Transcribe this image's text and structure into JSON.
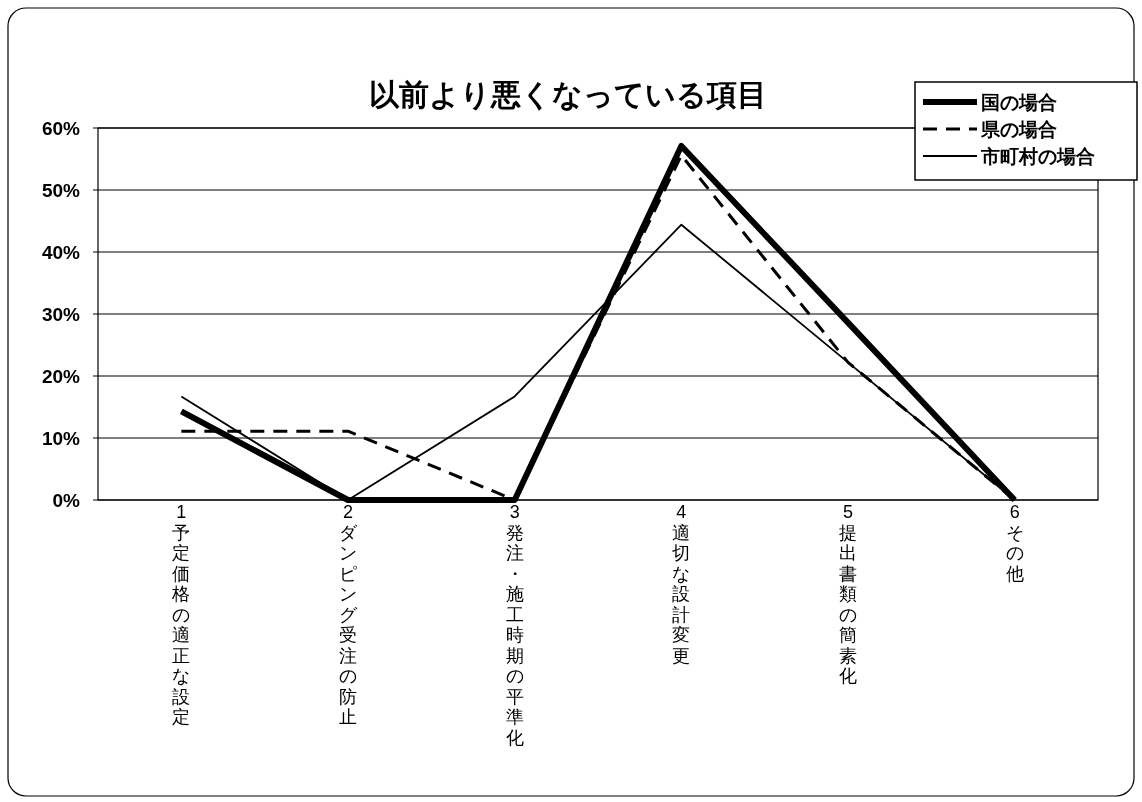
{
  "chart_data": {
    "type": "line",
    "title": "以前より悪くなっている項目",
    "categories": [
      "1予定価格の適正な設定",
      "2ダンピング受注の防止",
      "3発注・施工時期の平準化",
      "4適切な設計変更",
      "5提出書類の簡素化",
      "6その他"
    ],
    "series": [
      {
        "name": "国の場合",
        "color": "#000000",
        "line_style": "solid",
        "values": [
          14.3,
          0,
          0,
          57.1,
          28.6,
          0
        ]
      },
      {
        "name": "県の場合",
        "color": "#000000",
        "line_style": "dashed",
        "values": [
          11.1,
          11.1,
          0,
          55.6,
          22.2,
          0
        ]
      },
      {
        "name": "市町村の場合",
        "color": "#000000",
        "line_style": "solid",
        "values": [
          16.7,
          0,
          16.7,
          44.4,
          22.2,
          0
        ]
      }
    ],
    "ylim": [
      0,
      60
    ],
    "yticks": [
      {
        "value": 0,
        "label": "0%"
      },
      {
        "value": 10,
        "label": "10%"
      },
      {
        "value": 20,
        "label": "20%"
      },
      {
        "value": 30,
        "label": "30%"
      },
      {
        "value": 40,
        "label": "40%"
      },
      {
        "value": 50,
        "label": "50%"
      },
      {
        "value": 60,
        "label": "60%"
      }
    ],
    "grid": "y",
    "legend": "top right",
    "marker": "none"
  }
}
